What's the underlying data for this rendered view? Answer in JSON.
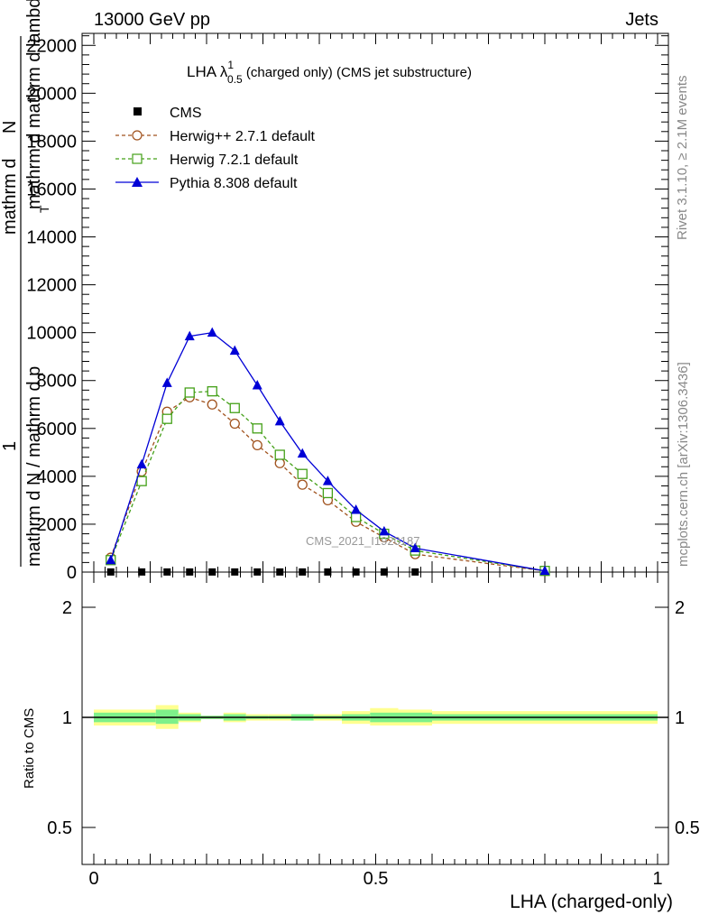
{
  "header": {
    "left": "13000 GeV pp",
    "right": "Jets"
  },
  "side": {
    "rivet": "Rivet 3.1.10, ≥ 2.1M events",
    "mcplots": "mcplots.cern.ch [arXiv:1306.3436]"
  },
  "watermark": "CMS_2021_I1920187",
  "chart_data": [
    {
      "type": "line",
      "title": "LHA λ¹₀.₅ (charged only) (CMS jet substructure)",
      "title_parts": {
        "main": "LHA λ",
        "sup": "1",
        "sub": "0.5",
        "rest": " (charged only) (CMS jet substructure)"
      },
      "xlabel": "LHA (charged-only)",
      "ylabel": "1 / mathrm dN / mathrm d p_T mathrm d mathrm dN / mathrm d lambda",
      "ylabel_parts": {
        "one": "1",
        "top": "mathrm d",
        "N": "N",
        "main": "mathrm d N / mathrm d p",
        "T": "T",
        "rest": " mathrm d mathrm d lambda"
      },
      "xlim": [
        0,
        1
      ],
      "ylim": [
        0,
        22500
      ],
      "yticks": [
        "0",
        "2000",
        "4000",
        "6000",
        "8000",
        "10000",
        "12000",
        "14000",
        "16000",
        "18000",
        "20000",
        "22000"
      ],
      "ytick_values": [
        0,
        2000,
        4000,
        6000,
        8000,
        10000,
        12000,
        14000,
        16000,
        18000,
        20000,
        22000
      ],
      "legend_position": "top-left",
      "series": [
        {
          "name": "CMS",
          "color": "#000000",
          "marker": "square-filled",
          "dashed": false,
          "line": false,
          "x": [
            0.03,
            0.085,
            0.13,
            0.17,
            0.21,
            0.25,
            0.29,
            0.33,
            0.37,
            0.415,
            0.465,
            0.515,
            0.57
          ],
          "y": [
            5,
            5,
            5,
            5,
            5,
            5,
            5,
            5,
            5,
            5,
            5,
            5,
            5
          ]
        },
        {
          "name": "Herwig++ 2.7.1 default",
          "color": "#a0521d",
          "marker": "circle-open",
          "dashed": true,
          "line": true,
          "x": [
            0.03,
            0.085,
            0.13,
            0.17,
            0.21,
            0.25,
            0.29,
            0.33,
            0.37,
            0.415,
            0.465,
            0.515,
            0.57,
            0.8
          ],
          "y": [
            600,
            4200,
            6700,
            7300,
            7000,
            6200,
            5300,
            4550,
            3650,
            3000,
            2100,
            1450,
            750,
            50
          ]
        },
        {
          "name": "Herwig 7.2.1 default",
          "color": "#44a018",
          "marker": "square-open",
          "dashed": true,
          "line": true,
          "x": [
            0.03,
            0.085,
            0.13,
            0.17,
            0.21,
            0.25,
            0.29,
            0.33,
            0.37,
            0.415,
            0.465,
            0.515,
            0.57,
            0.8
          ],
          "y": [
            500,
            3800,
            6400,
            7500,
            7550,
            6850,
            6000,
            4900,
            4100,
            3300,
            2300,
            1600,
            900,
            50
          ]
        },
        {
          "name": "Pythia 8.308 default",
          "color": "#0000d6",
          "marker": "triangle-filled",
          "dashed": false,
          "line": true,
          "x": [
            0.03,
            0.085,
            0.13,
            0.17,
            0.21,
            0.25,
            0.29,
            0.33,
            0.37,
            0.415,
            0.465,
            0.515,
            0.57,
            0.8
          ],
          "y": [
            500,
            4500,
            7900,
            9850,
            10000,
            9250,
            7800,
            6300,
            4950,
            3800,
            2600,
            1700,
            1000,
            50
          ]
        }
      ]
    },
    {
      "type": "area",
      "ylabel": "Ratio to CMS",
      "xlabel": "LHA (charged-only)",
      "xlim": [
        0,
        1
      ],
      "xticks": [
        "0",
        "0.5",
        "1"
      ],
      "xtick_values": [
        0,
        0.5,
        1
      ],
      "ylim": [
        0.3,
        2.3
      ],
      "yticks": [
        "0.5",
        "1",
        "2"
      ],
      "ytick_values": [
        0.5,
        1,
        2
      ],
      "bins": [
        {
          "lo": 0.0,
          "hi": 0.06,
          "inner": [
            0.97,
            1.03
          ],
          "outer": [
            0.95,
            1.05
          ]
        },
        {
          "lo": 0.06,
          "hi": 0.11,
          "inner": [
            0.97,
            1.03
          ],
          "outer": [
            0.95,
            1.05
          ]
        },
        {
          "lo": 0.11,
          "hi": 0.15,
          "inner": [
            0.96,
            1.05
          ],
          "outer": [
            0.93,
            1.08
          ]
        },
        {
          "lo": 0.15,
          "hi": 0.19,
          "inner": [
            0.98,
            1.02
          ],
          "outer": [
            0.97,
            1.03
          ]
        },
        {
          "lo": 0.19,
          "hi": 0.23,
          "inner": [
            0.99,
            1.01
          ],
          "outer": [
            0.99,
            1.01
          ]
        },
        {
          "lo": 0.23,
          "hi": 0.27,
          "inner": [
            0.98,
            1.02
          ],
          "outer": [
            0.97,
            1.03
          ]
        },
        {
          "lo": 0.27,
          "hi": 0.31,
          "inner": [
            0.99,
            1.01
          ],
          "outer": [
            0.98,
            1.02
          ]
        },
        {
          "lo": 0.31,
          "hi": 0.35,
          "inner": [
            0.99,
            1.01
          ],
          "outer": [
            0.98,
            1.02
          ]
        },
        {
          "lo": 0.35,
          "hi": 0.39,
          "inner": [
            0.98,
            1.02
          ],
          "outer": [
            0.98,
            1.02
          ]
        },
        {
          "lo": 0.39,
          "hi": 0.44,
          "inner": [
            0.99,
            1.01
          ],
          "outer": [
            0.98,
            1.02
          ]
        },
        {
          "lo": 0.44,
          "hi": 0.49,
          "inner": [
            0.98,
            1.02
          ],
          "outer": [
            0.96,
            1.04
          ]
        },
        {
          "lo": 0.49,
          "hi": 0.54,
          "inner": [
            0.97,
            1.03
          ],
          "outer": [
            0.95,
            1.06
          ]
        },
        {
          "lo": 0.54,
          "hi": 0.6,
          "inner": [
            0.97,
            1.03
          ],
          "outer": [
            0.95,
            1.05
          ]
        },
        {
          "lo": 0.6,
          "hi": 1.0,
          "inner": [
            0.98,
            1.02
          ],
          "outer": [
            0.96,
            1.04
          ]
        }
      ],
      "inner_color": "#7ef08a",
      "outer_color": "#ffff90",
      "reference_value": 1
    }
  ]
}
